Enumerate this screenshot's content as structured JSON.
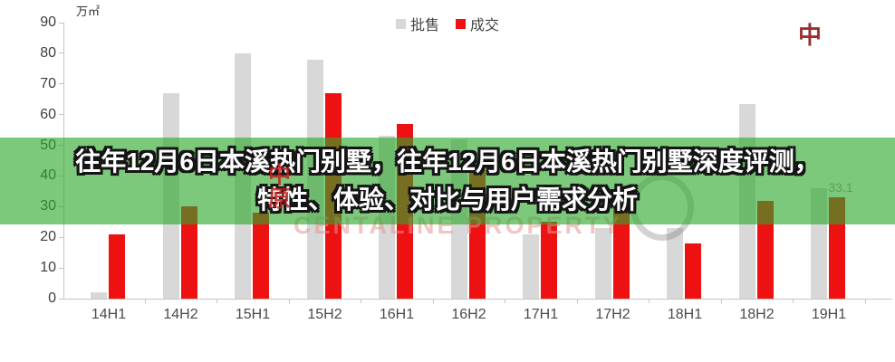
{
  "banner": {
    "line1": "往年12月6日本溪热门别墅，往年12月6日本溪热门别墅深度评测，",
    "line2": "特性、体验、对比与用户需求分析",
    "background": "rgba(44,168,44,0.62)"
  },
  "watermark": {
    "text": "CENTALINE PROPERTY",
    "logo_char_top": "中",
    "logo_char_bottom": "原",
    "corner_char": "中"
  },
  "chart_data": {
    "type": "bar",
    "title": "",
    "unit": "万㎡",
    "categories": [
      "14H1",
      "14H2",
      "15H1",
      "15H2",
      "16H1",
      "16H2",
      "17H1",
      "17H2",
      "18H1",
      "18H2",
      "19H1"
    ],
    "series": [
      {
        "name": "批售",
        "color": "#d8d8d8",
        "values": [
          2,
          67,
          80,
          78,
          53,
          52,
          21,
          23,
          23,
          63.5,
          36
        ]
      },
      {
        "name": "成交",
        "color": "#ee1111",
        "values": [
          21,
          30,
          28,
          67,
          57,
          42,
          25,
          30,
          18,
          32,
          33.1
        ]
      }
    ],
    "ylim": [
      0,
      90
    ],
    "yticks": [
      0,
      10,
      20,
      30,
      40,
      50,
      60,
      70,
      80,
      90
    ],
    "grid": false,
    "legend_position": "top-center",
    "data_labels": [
      {
        "series": "成交",
        "category": "19H1",
        "text": "33.1"
      }
    ]
  }
}
